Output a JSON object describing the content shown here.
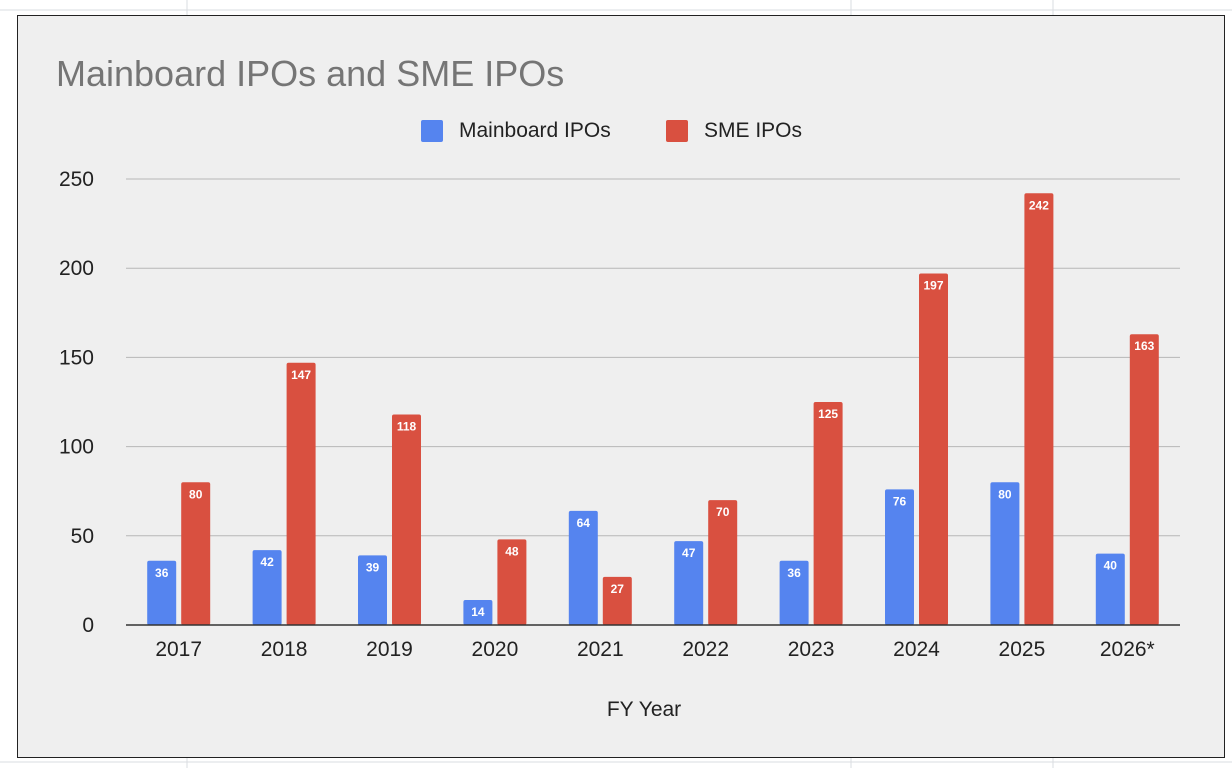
{
  "chart_data": {
    "type": "bar",
    "title": "Mainboard IPOs and SME IPOs",
    "xlabel": "FY Year",
    "ylabel": "",
    "ylim": [
      0,
      250
    ],
    "yticks": [
      0,
      50,
      100,
      150,
      200,
      250
    ],
    "ytick_labels": [
      "0",
      "50",
      "100",
      "150",
      "200",
      "250"
    ],
    "grid": true,
    "legend_position": "top-center",
    "categories": [
      "2017",
      "2018",
      "2019",
      "2020",
      "2021",
      "2022",
      "2023",
      "2024",
      "2025",
      "2026*"
    ],
    "series": [
      {
        "name": "Mainboard IPOs",
        "color": "#5584ef",
        "values": [
          36,
          42,
          39,
          14,
          64,
          47,
          36,
          76,
          80,
          40
        ]
      },
      {
        "name": "SME IPOs",
        "color": "#d95040",
        "values": [
          80,
          147,
          118,
          48,
          27,
          70,
          125,
          197,
          242,
          163
        ]
      }
    ]
  }
}
